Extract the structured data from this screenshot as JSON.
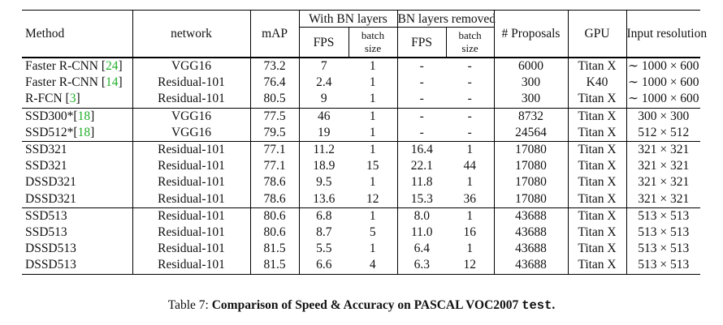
{
  "headers": {
    "method": "Method",
    "network": "network",
    "map": "mAP",
    "with_bn": "With BN layers",
    "bn_removed": "BN layers removed",
    "fps": "FPS",
    "batch_line1": "batch",
    "batch_line2": "size",
    "proposals": "# Proposals",
    "gpu": "GPU",
    "input_res": "Input resolution"
  },
  "groups": [
    [
      {
        "method": "Faster R-CNN [",
        "ref": "24",
        "close": "]",
        "network": "VGG16",
        "map": "73.2",
        "fps_bn": "7",
        "batch_bn": "1",
        "fps_rm": "-",
        "batch_rm": "-",
        "proposals": "6000",
        "gpu": "Titan X",
        "res": "∼ 1000 × 600"
      },
      {
        "method": "Faster R-CNN [",
        "ref": "14",
        "close": "]",
        "network": "Residual-101",
        "map": "76.4",
        "fps_bn": "2.4",
        "batch_bn": "1",
        "fps_rm": "-",
        "batch_rm": "-",
        "proposals": "300",
        "gpu": "K40",
        "res": "∼ 1000 × 600"
      },
      {
        "method": "R-FCN [",
        "ref": "3",
        "close": "]",
        "network": "Residual-101",
        "map": "80.5",
        "fps_bn": "9",
        "batch_bn": "1",
        "fps_rm": "-",
        "batch_rm": "-",
        "proposals": "300",
        "gpu": "Titan X",
        "res": "∼ 1000 × 600"
      }
    ],
    [
      {
        "method": "SSD300*[",
        "ref": "18",
        "close": "]",
        "network": "VGG16",
        "map": "77.5",
        "fps_bn": "46",
        "batch_bn": "1",
        "fps_rm": "-",
        "batch_rm": "-",
        "proposals": "8732",
        "gpu": "Titan X",
        "res": "300 × 300"
      },
      {
        "method": "SSD512*[",
        "ref": "18",
        "close": "]",
        "network": "VGG16",
        "map": "79.5",
        "fps_bn": "19",
        "batch_bn": "1",
        "fps_rm": "-",
        "batch_rm": "-",
        "proposals": "24564",
        "gpu": "Titan X",
        "res": "512 × 512"
      }
    ],
    [
      {
        "method": "SSD321",
        "ref": "",
        "close": "",
        "network": "Residual-101",
        "map": "77.1",
        "fps_bn": "11.2",
        "batch_bn": "1",
        "fps_rm": "16.4",
        "batch_rm": "1",
        "proposals": "17080",
        "gpu": "Titan X",
        "res": "321 × 321"
      },
      {
        "method": "SSD321",
        "ref": "",
        "close": "",
        "network": "Residual-101",
        "map": "77.1",
        "fps_bn": "18.9",
        "batch_bn": "15",
        "fps_rm": "22.1",
        "batch_rm": "44",
        "proposals": "17080",
        "gpu": "Titan X",
        "res": "321 × 321"
      },
      {
        "method": "DSSD321",
        "ref": "",
        "close": "",
        "network": "Residual-101",
        "map": "78.6",
        "fps_bn": "9.5",
        "batch_bn": "1",
        "fps_rm": "11.8",
        "batch_rm": "1",
        "proposals": "17080",
        "gpu": "Titan X",
        "res": "321 × 321"
      },
      {
        "method": "DSSD321",
        "ref": "",
        "close": "",
        "network": "Residual-101",
        "map": "78.6",
        "fps_bn": "13.6",
        "batch_bn": "12",
        "fps_rm": "15.3",
        "batch_rm": "36",
        "proposals": "17080",
        "gpu": "Titan X",
        "res": "321 × 321"
      }
    ],
    [
      {
        "method": "SSD513",
        "ref": "",
        "close": "",
        "network": "Residual-101",
        "map": "80.6",
        "fps_bn": "6.8",
        "batch_bn": "1",
        "fps_rm": "8.0",
        "batch_rm": "1",
        "proposals": "43688",
        "gpu": "Titan X",
        "res": "513 × 513"
      },
      {
        "method": "SSD513",
        "ref": "",
        "close": "",
        "network": "Residual-101",
        "map": "80.6",
        "fps_bn": "8.7",
        "batch_bn": "5",
        "fps_rm": "11.0",
        "batch_rm": "16",
        "proposals": "43688",
        "gpu": "Titan X",
        "res": "513 × 513"
      },
      {
        "method": "DSSD513",
        "ref": "",
        "close": "",
        "network": "Residual-101",
        "map": "81.5",
        "fps_bn": "5.5",
        "batch_bn": "1",
        "fps_rm": "6.4",
        "batch_rm": "1",
        "proposals": "43688",
        "gpu": "Titan X",
        "res": "513 × 513"
      },
      {
        "method": "DSSD513",
        "ref": "",
        "close": "",
        "network": "Residual-101",
        "map": "81.5",
        "fps_bn": "6.6",
        "batch_bn": "4",
        "fps_rm": "6.3",
        "batch_rm": "12",
        "proposals": "43688",
        "gpu": "Titan X",
        "res": "513 × 513"
      }
    ]
  ],
  "caption": {
    "prefix": "Table 7: ",
    "bold": "Comparison of Speed & Accuracy on PASCAL VOC2007 ",
    "mono": "test",
    "end": "."
  }
}
